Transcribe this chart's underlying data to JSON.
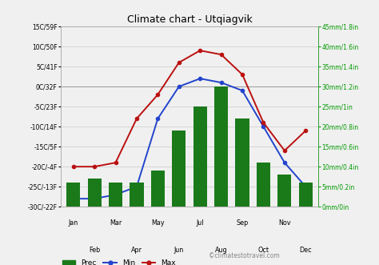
{
  "title": "Climate chart - Utqiagvik",
  "months": [
    "Jan",
    "Feb",
    "Mar",
    "Apr",
    "May",
    "Jun",
    "Jul",
    "Aug",
    "Sep",
    "Oct",
    "Nov",
    "Dec"
  ],
  "temp_min": [
    -28,
    -28,
    -27,
    -25,
    -8,
    0,
    2,
    1,
    -1,
    -10,
    -19,
    -25
  ],
  "temp_max": [
    -20,
    -20,
    -19,
    -8,
    -2,
    6,
    9,
    8,
    3,
    -9,
    -16,
    -11
  ],
  "precip_mm": [
    6,
    7,
    6,
    6,
    9,
    19,
    25,
    30,
    22,
    11,
    8,
    6
  ],
  "ylim_temp": [
    -30,
    15
  ],
  "ylim_precip": [
    0,
    45
  ],
  "yticks_temp": [
    -30,
    -25,
    -20,
    -15,
    -10,
    -5,
    0,
    5,
    10,
    15
  ],
  "ytick_labels_temp": [
    "-30C/-22F",
    "-25C/-13F",
    "-20C/-4F",
    "-15C/5F",
    "-10C/14F",
    "-5C/23F",
    "0C/32F",
    "5C/41F",
    "10C/50F",
    "15C/59F"
  ],
  "yticks_precip": [
    0,
    5,
    10,
    15,
    20,
    25,
    30,
    35,
    40,
    45
  ],
  "ytick_labels_precip": [
    "0mm/0in",
    "5mm/0.2in",
    "10mm/0.4in",
    "15mm/0.6in",
    "20mm/0.8in",
    "25mm/1in",
    "30mm/1.2in",
    "35mm/1.4in",
    "40mm/1.6in",
    "45mm/1.8in"
  ],
  "bar_color": "#1a7a1a",
  "min_line_color": "#2244cc",
  "max_line_color": "#bb1111",
  "grid_color": "#cccccc",
  "bg_color": "#f0f0f0",
  "title_fontsize": 9,
  "axis_label_color_right": "#009900",
  "watermark": "©climatestotravel.com"
}
